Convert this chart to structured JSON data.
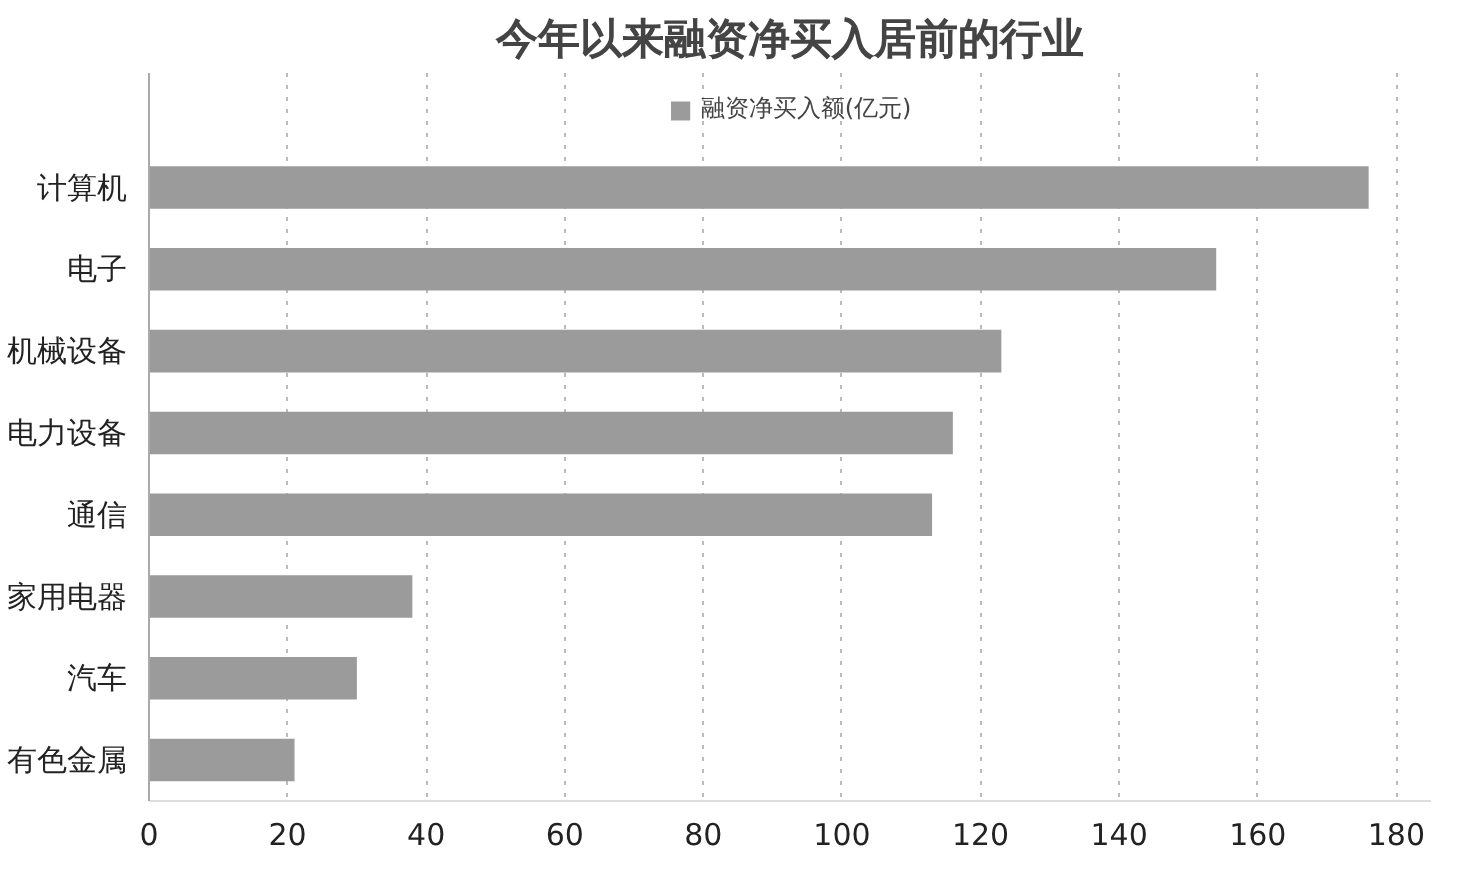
{
  "chart_data": {
    "type": "bar",
    "orientation": "horizontal",
    "title": "今年以来融资净买入居前的行业",
    "categories": [
      "计算机",
      "电子",
      "机械设备",
      "电力设备",
      "通信",
      "家用电器",
      "汽车",
      "有色金属"
    ],
    "series": [
      {
        "name": "融资净买入额(亿元)",
        "color": "#9b9b9b",
        "values": [
          176,
          154,
          123,
          116,
          113,
          38,
          30,
          21
        ]
      }
    ],
    "xlim": [
      0,
      185
    ],
    "xticks": [
      0,
      20,
      40,
      60,
      80,
      100,
      120,
      140,
      160,
      180
    ],
    "grid": "x",
    "legend": "top"
  }
}
